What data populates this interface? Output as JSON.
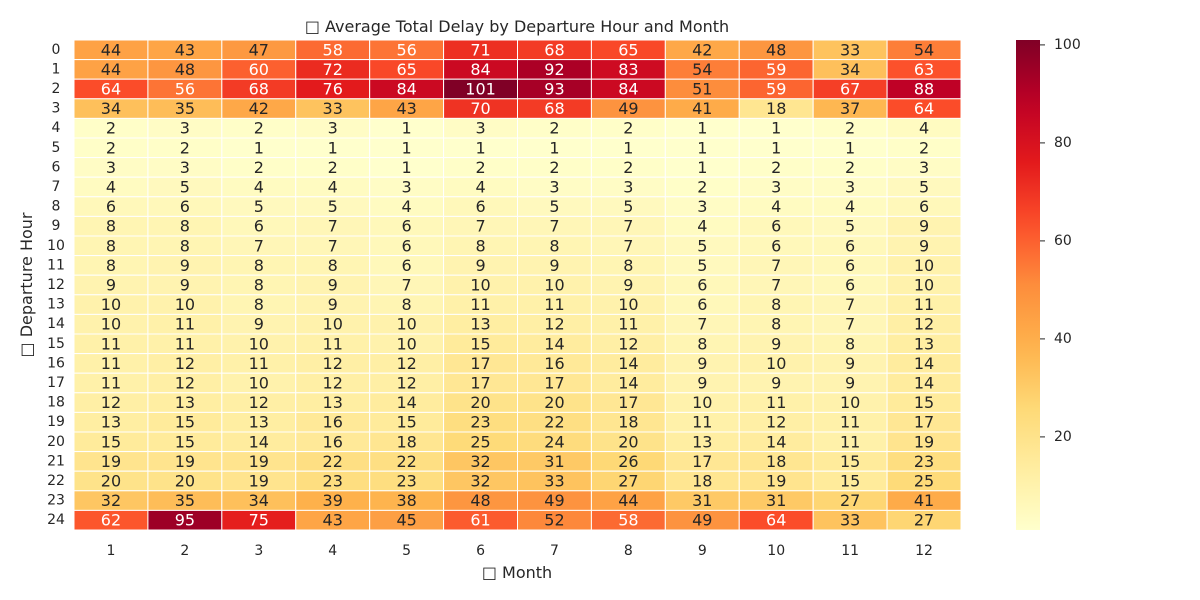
{
  "chart_data": {
    "type": "heatmap",
    "title": "□ Average Total Delay by Departure Hour and Month",
    "xlabel": "□ Month",
    "ylabel": "□ Departure Hour",
    "x_categories": [
      "1",
      "2",
      "3",
      "4",
      "5",
      "6",
      "7",
      "8",
      "9",
      "10",
      "11",
      "12"
    ],
    "y_categories": [
      "0",
      "1",
      "2",
      "3",
      "4",
      "5",
      "6",
      "7",
      "8",
      "9",
      "10",
      "11",
      "12",
      "13",
      "14",
      "15",
      "16",
      "17",
      "18",
      "19",
      "20",
      "21",
      "22",
      "23",
      "24"
    ],
    "values": [
      [
        44,
        43,
        47,
        58,
        56,
        71,
        68,
        65,
        42,
        48,
        33,
        54
      ],
      [
        44,
        48,
        60,
        72,
        65,
        84,
        92,
        83,
        54,
        59,
        34,
        63
      ],
      [
        64,
        56,
        68,
        76,
        84,
        101,
        93,
        84,
        51,
        59,
        67,
        88
      ],
      [
        34,
        35,
        42,
        33,
        43,
        70,
        68,
        49,
        41,
        18,
        37,
        64
      ],
      [
        2,
        3,
        2,
        3,
        1,
        3,
        2,
        2,
        1,
        1,
        2,
        4
      ],
      [
        2,
        2,
        1,
        1,
        1,
        1,
        1,
        1,
        1,
        1,
        1,
        2
      ],
      [
        3,
        3,
        2,
        2,
        1,
        2,
        2,
        2,
        1,
        2,
        2,
        3
      ],
      [
        4,
        5,
        4,
        4,
        3,
        4,
        3,
        3,
        2,
        3,
        3,
        5
      ],
      [
        6,
        6,
        5,
        5,
        4,
        6,
        5,
        5,
        3,
        4,
        4,
        6
      ],
      [
        8,
        8,
        6,
        7,
        6,
        7,
        7,
        7,
        4,
        6,
        5,
        9
      ],
      [
        8,
        8,
        7,
        7,
        6,
        8,
        8,
        7,
        5,
        6,
        6,
        9
      ],
      [
        8,
        9,
        8,
        8,
        6,
        9,
        9,
        8,
        5,
        7,
        6,
        10
      ],
      [
        9,
        9,
        8,
        9,
        7,
        10,
        10,
        9,
        6,
        7,
        6,
        10
      ],
      [
        10,
        10,
        8,
        9,
        8,
        11,
        11,
        10,
        6,
        8,
        7,
        11
      ],
      [
        10,
        11,
        9,
        10,
        10,
        13,
        12,
        11,
        7,
        8,
        7,
        12
      ],
      [
        11,
        11,
        10,
        11,
        10,
        15,
        14,
        12,
        8,
        9,
        8,
        13
      ],
      [
        11,
        12,
        11,
        12,
        12,
        17,
        16,
        14,
        9,
        10,
        9,
        14
      ],
      [
        11,
        12,
        10,
        12,
        12,
        17,
        17,
        14,
        9,
        9,
        9,
        14
      ],
      [
        12,
        13,
        12,
        13,
        14,
        20,
        20,
        17,
        10,
        11,
        10,
        15
      ],
      [
        13,
        15,
        13,
        16,
        15,
        23,
        22,
        18,
        11,
        12,
        11,
        17
      ],
      [
        15,
        15,
        14,
        16,
        18,
        25,
        24,
        20,
        13,
        14,
        11,
        19
      ],
      [
        19,
        19,
        19,
        22,
        22,
        32,
        31,
        26,
        17,
        18,
        15,
        23
      ],
      [
        20,
        20,
        19,
        23,
        23,
        32,
        33,
        27,
        18,
        19,
        15,
        25
      ],
      [
        32,
        35,
        34,
        39,
        38,
        48,
        49,
        44,
        31,
        31,
        27,
        41
      ],
      [
        62,
        95,
        75,
        43,
        45,
        61,
        52,
        58,
        49,
        64,
        33,
        27
      ]
    ],
    "colormap": "YlOrRd",
    "vmin": 1,
    "vmax": 101,
    "colorbar_ticks": [
      20,
      40,
      60,
      80,
      100
    ],
    "grid": false,
    "annotations": true
  }
}
